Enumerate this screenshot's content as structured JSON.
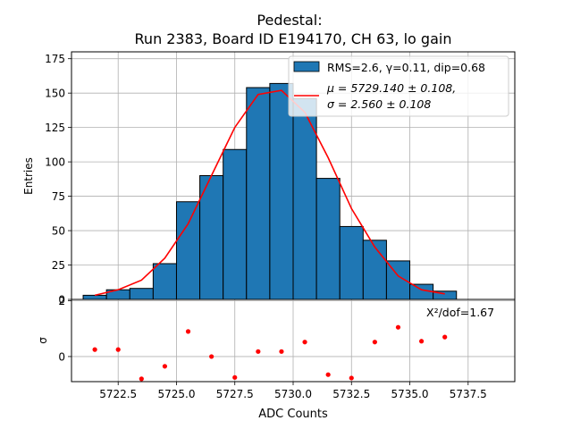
{
  "chart_data": [
    {
      "type": "bar",
      "title": "Pedestal:",
      "subtitle": "Run 2383, Board ID E194170, CH 63, lo gain",
      "ylabel": "Entries",
      "xlim": [
        5720.5,
        5739.5
      ],
      "ylim": [
        0,
        180
      ],
      "yticks": [
        0,
        25,
        50,
        75,
        100,
        125,
        150,
        175
      ],
      "grid": true,
      "legend_position": "top-right",
      "histogram": {
        "label": "RMS=2.6, γ=0.11, dip=0.68",
        "color": "#1f77b4",
        "bin_width": 1,
        "bin_lefts": [
          5721,
          5722,
          5723,
          5724,
          5725,
          5726,
          5727,
          5728,
          5729,
          5730,
          5731,
          5732,
          5733,
          5734,
          5735,
          5736
        ],
        "counts": [
          3,
          7,
          8,
          26,
          71,
          90,
          109,
          154,
          157,
          146,
          88,
          53,
          43,
          28,
          11,
          6
        ]
      },
      "fit": {
        "label_line1": "μ = 5729.140 ± 0.108,",
        "label_line2": "σ = 2.560 ± 0.108",
        "color": "#ff0000",
        "x": [
          5721.5,
          5722.5,
          5723.5,
          5724.5,
          5725.5,
          5726.5,
          5727.5,
          5728.5,
          5729.5,
          5730.5,
          5731.5,
          5732.5,
          5733.5,
          5734.5,
          5735.5,
          5736.5
        ],
        "y": [
          3,
          7,
          14,
          30,
          55,
          90,
          125,
          149,
          152,
          136,
          103,
          66,
          38,
          17,
          7,
          4
        ]
      }
    },
    {
      "type": "scatter",
      "xlabel": "ADC Counts",
      "ylabel": "σ",
      "xlim": [
        5720.5,
        5739.5
      ],
      "ylim": [
        -0.9,
        2.05
      ],
      "yticks": [
        0,
        2
      ],
      "xticks": [
        5722.5,
        5725.0,
        5727.5,
        5730.0,
        5732.5,
        5735.0,
        5737.5
      ],
      "xtick_labels": [
        "5722.5",
        "5725.0",
        "5727.5",
        "5730.0",
        "5732.5",
        "5735.0",
        "5737.5"
      ],
      "grid": true,
      "annotation": "X²/dof=1.67",
      "color": "#ff0000",
      "x": [
        5721.5,
        5722.5,
        5723.5,
        5724.5,
        5725.5,
        5726.5,
        5727.5,
        5728.5,
        5729.5,
        5730.5,
        5731.5,
        5732.5,
        5733.5,
        5734.5,
        5735.5,
        5736.5
      ],
      "y": [
        0.25,
        0.25,
        -0.8,
        -0.35,
        0.9,
        0.0,
        -0.75,
        0.18,
        0.18,
        0.52,
        -0.65,
        -0.77,
        0.52,
        1.05,
        0.55,
        0.7
      ]
    }
  ]
}
